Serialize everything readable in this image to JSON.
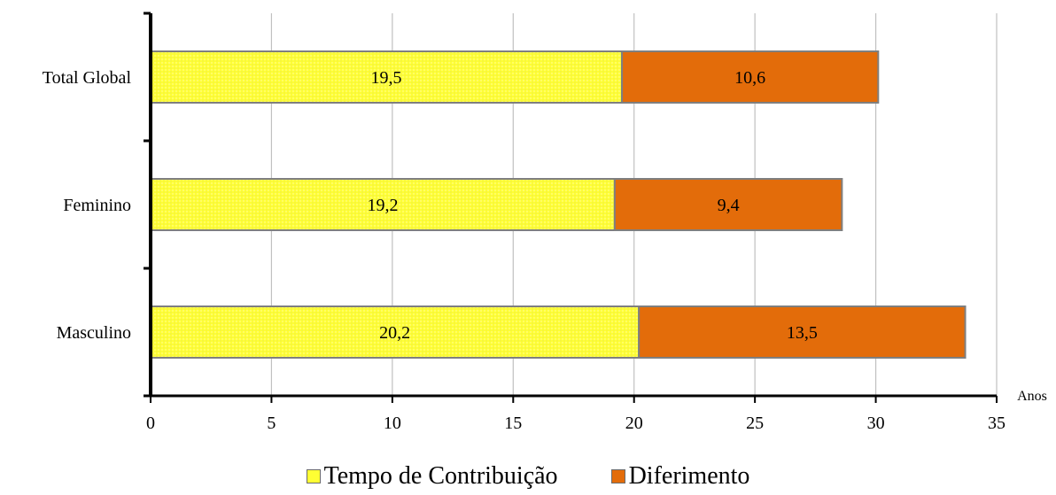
{
  "chart_data": {
    "type": "bar",
    "orientation": "horizontal",
    "stacked": true,
    "categories": [
      "Total Global",
      "Feminino",
      "Masculino"
    ],
    "series": [
      {
        "name": "Tempo de Contribuição",
        "values": [
          19.5,
          19.2,
          20.2
        ],
        "labels": [
          "19,5",
          "19,2",
          "20,2"
        ],
        "color": "#ffff33",
        "pattern": "dotted"
      },
      {
        "name": "Diferimento",
        "values": [
          10.6,
          9.4,
          13.5
        ],
        "labels": [
          "10,6",
          "9,4",
          "13,5"
        ],
        "color": "#e36c0a"
      }
    ],
    "xlabel": "Anos",
    "ylabel": "",
    "title": "",
    "xlim": [
      0,
      35
    ],
    "x_ticks": [
      0,
      5,
      10,
      15,
      20,
      25,
      30,
      35
    ],
    "x_tick_labels": [
      "0",
      "5",
      "10",
      "15",
      "20",
      "25",
      "30",
      "35"
    ],
    "grid": "vertical",
    "legend_position": "bottom"
  }
}
